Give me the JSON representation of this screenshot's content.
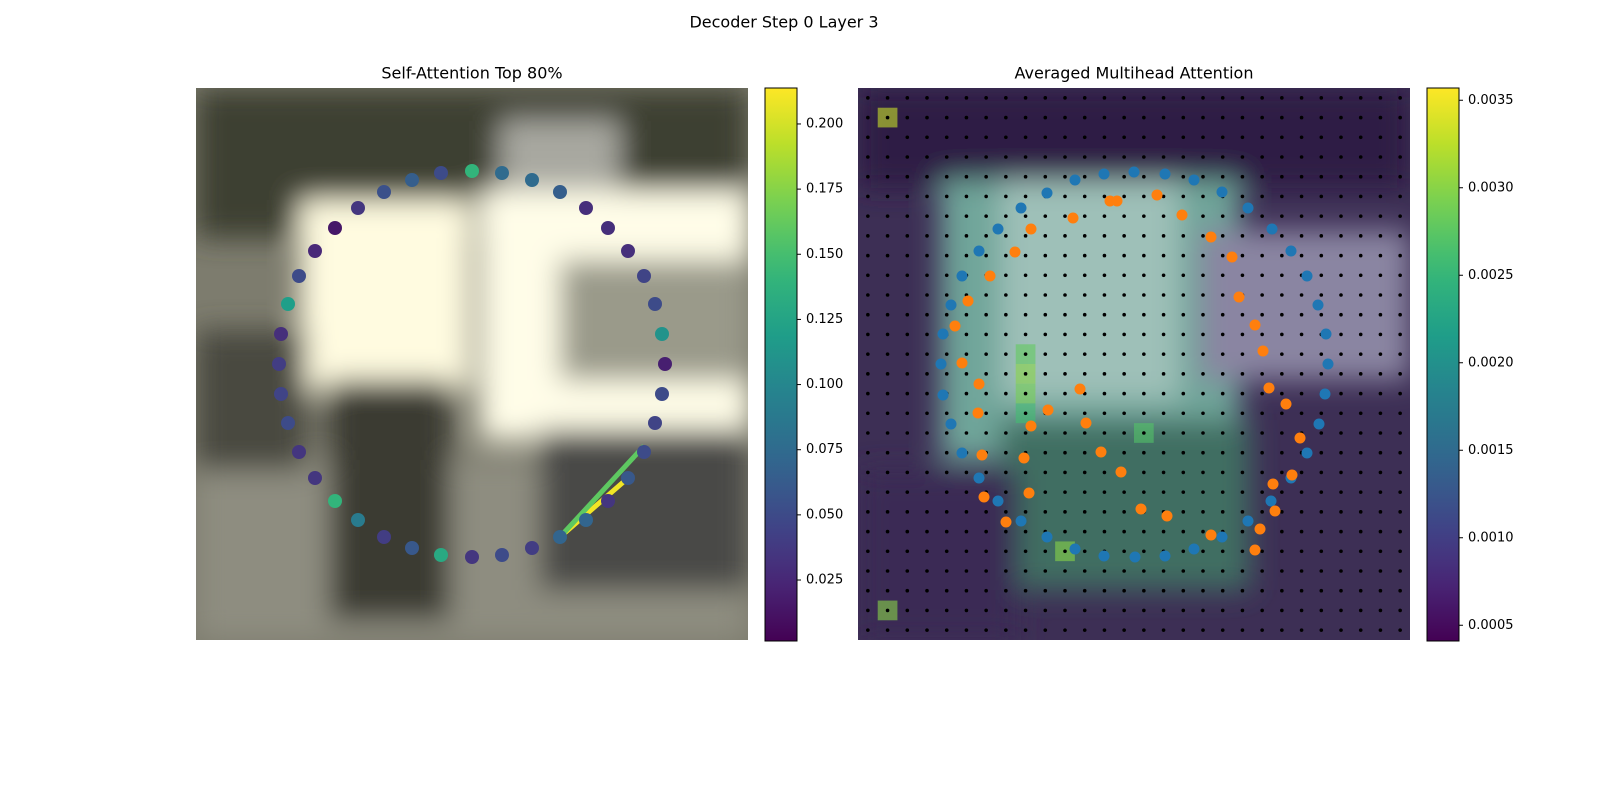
{
  "suptitle": "Decoder Step 0 Layer 3",
  "chart_data": [
    {
      "type": "scatter",
      "title": "Self-Attention Top 80%",
      "xlim": [
        0,
        552
      ],
      "ylim": [
        552,
        0
      ],
      "x": [
        276,
        306,
        336,
        364,
        390,
        412,
        432,
        448,
        459,
        466,
        469,
        466,
        459,
        448,
        432,
        412,
        390,
        364,
        336,
        306,
        276,
        245,
        216,
        188,
        162,
        139,
        119,
        103,
        92,
        85,
        83,
        85,
        92,
        103,
        119,
        139,
        162,
        188,
        216,
        245
      ],
      "y": [
        83,
        85,
        92,
        104,
        120,
        140,
        163,
        188,
        216,
        246,
        276,
        306,
        335,
        364,
        390,
        413,
        432,
        449,
        460,
        467,
        469,
        467,
        460,
        449,
        432,
        413,
        390,
        364,
        335,
        306,
        276,
        246,
        216,
        188,
        163,
        140,
        120,
        104,
        92,
        85
      ],
      "values": [
        0.14,
        0.075,
        0.075,
        0.065,
        0.03,
        0.03,
        0.03,
        0.045,
        0.05,
        0.11,
        0.02,
        0.05,
        0.045,
        0.05,
        0.06,
        0.035,
        0.07,
        0.07,
        0.04,
        0.05,
        0.035,
        0.13,
        0.06,
        0.04,
        0.09,
        0.14,
        0.035,
        0.035,
        0.05,
        0.045,
        0.04,
        0.03,
        0.12,
        0.05,
        0.025,
        0.015,
        0.035,
        0.055,
        0.065,
        0.05
      ],
      "links": [
        {
          "source": 17,
          "target": 14,
          "value": 0.21
        },
        {
          "source": 17,
          "target": 13,
          "value": 0.16
        }
      ],
      "clim": [
        0.0016,
        0.2138
      ],
      "cticks": [
        0.025,
        {
          "value": 0.05,
          "label": "0.050"
        },
        0.075,
        {
          "value": 0.1,
          "label": "0.100"
        },
        0.125,
        {
          "value": 0.15,
          "label": "0.150"
        },
        0.175,
        {
          "value": 0.2,
          "label": "0.200"
        }
      ]
    },
    {
      "type": "heatmap-scatter",
      "title": "Averaged Multihead Attention",
      "xlim": [
        0,
        552
      ],
      "ylim": [
        552,
        0
      ],
      "grid_size": 28,
      "cells": {
        "col": [
          1,
          8,
          8,
          8,
          8,
          10,
          1,
          14
        ],
        "row": [
          1,
          13,
          14,
          15,
          16,
          23,
          26,
          17
        ],
        "values": [
          0.0033,
          0.0028,
          0.003,
          0.0029,
          0.0026,
          0.003,
          0.003,
          0.0027
        ]
      },
      "series": [
        {
          "color": "#1f77b4",
          "x": [
            189,
            217,
            246,
            276,
            307,
            336,
            364,
            390,
            414,
            433,
            449,
            460,
            468,
            470,
            467,
            461,
            449,
            433,
            413,
            390,
            364,
            336,
            307,
            277,
            246,
            217,
            189,
            163,
            140,
            121,
            104,
            93,
            85,
            83,
            85,
            93,
            104,
            121,
            140,
            163
          ],
          "y": [
            105,
            92,
            86,
            84,
            86,
            92,
            104,
            120,
            141,
            163,
            188,
            217,
            246,
            276,
            306,
            336,
            365,
            390,
            413,
            433,
            449,
            461,
            468,
            469,
            468,
            461,
            449,
            433,
            413,
            390,
            365,
            336,
            307,
            276,
            246,
            217,
            188,
            163,
            141,
            120
          ]
        },
        {
          "color": "#ff7f0e",
          "x": [
            299,
            324,
            353,
            374,
            381,
            397,
            405,
            411,
            428,
            442,
            415,
            434,
            417,
            402,
            397,
            353,
            309,
            283,
            263,
            243,
            228,
            222,
            215,
            252,
            259,
            173,
            157,
            132,
            110,
            97,
            104,
            121,
            120,
            124,
            126,
            148,
            171,
            166,
            173,
            190
          ],
          "y": [
            107,
            127,
            149,
            169,
            209,
            237,
            263,
            300,
            316,
            350,
            396,
            387,
            423,
            441,
            462,
            447,
            428,
            421,
            384,
            364,
            335,
            301,
            130,
            113,
            113,
            141,
            164,
            188,
            213,
            238,
            275,
            296,
            325,
            367,
            409,
            434,
            405,
            370,
            338,
            322
          ]
        }
      ],
      "clim": [
        0.00041,
        0.00357
      ],
      "cticks": [
        0.0005,
        {
          "value": 0.001,
          "label": "0.0010"
        },
        0.0015,
        {
          "value": 0.002,
          "label": "0.0020"
        },
        0.0025,
        {
          "value": 0.003,
          "label": "0.0030"
        },
        0.0035
      ]
    }
  ]
}
